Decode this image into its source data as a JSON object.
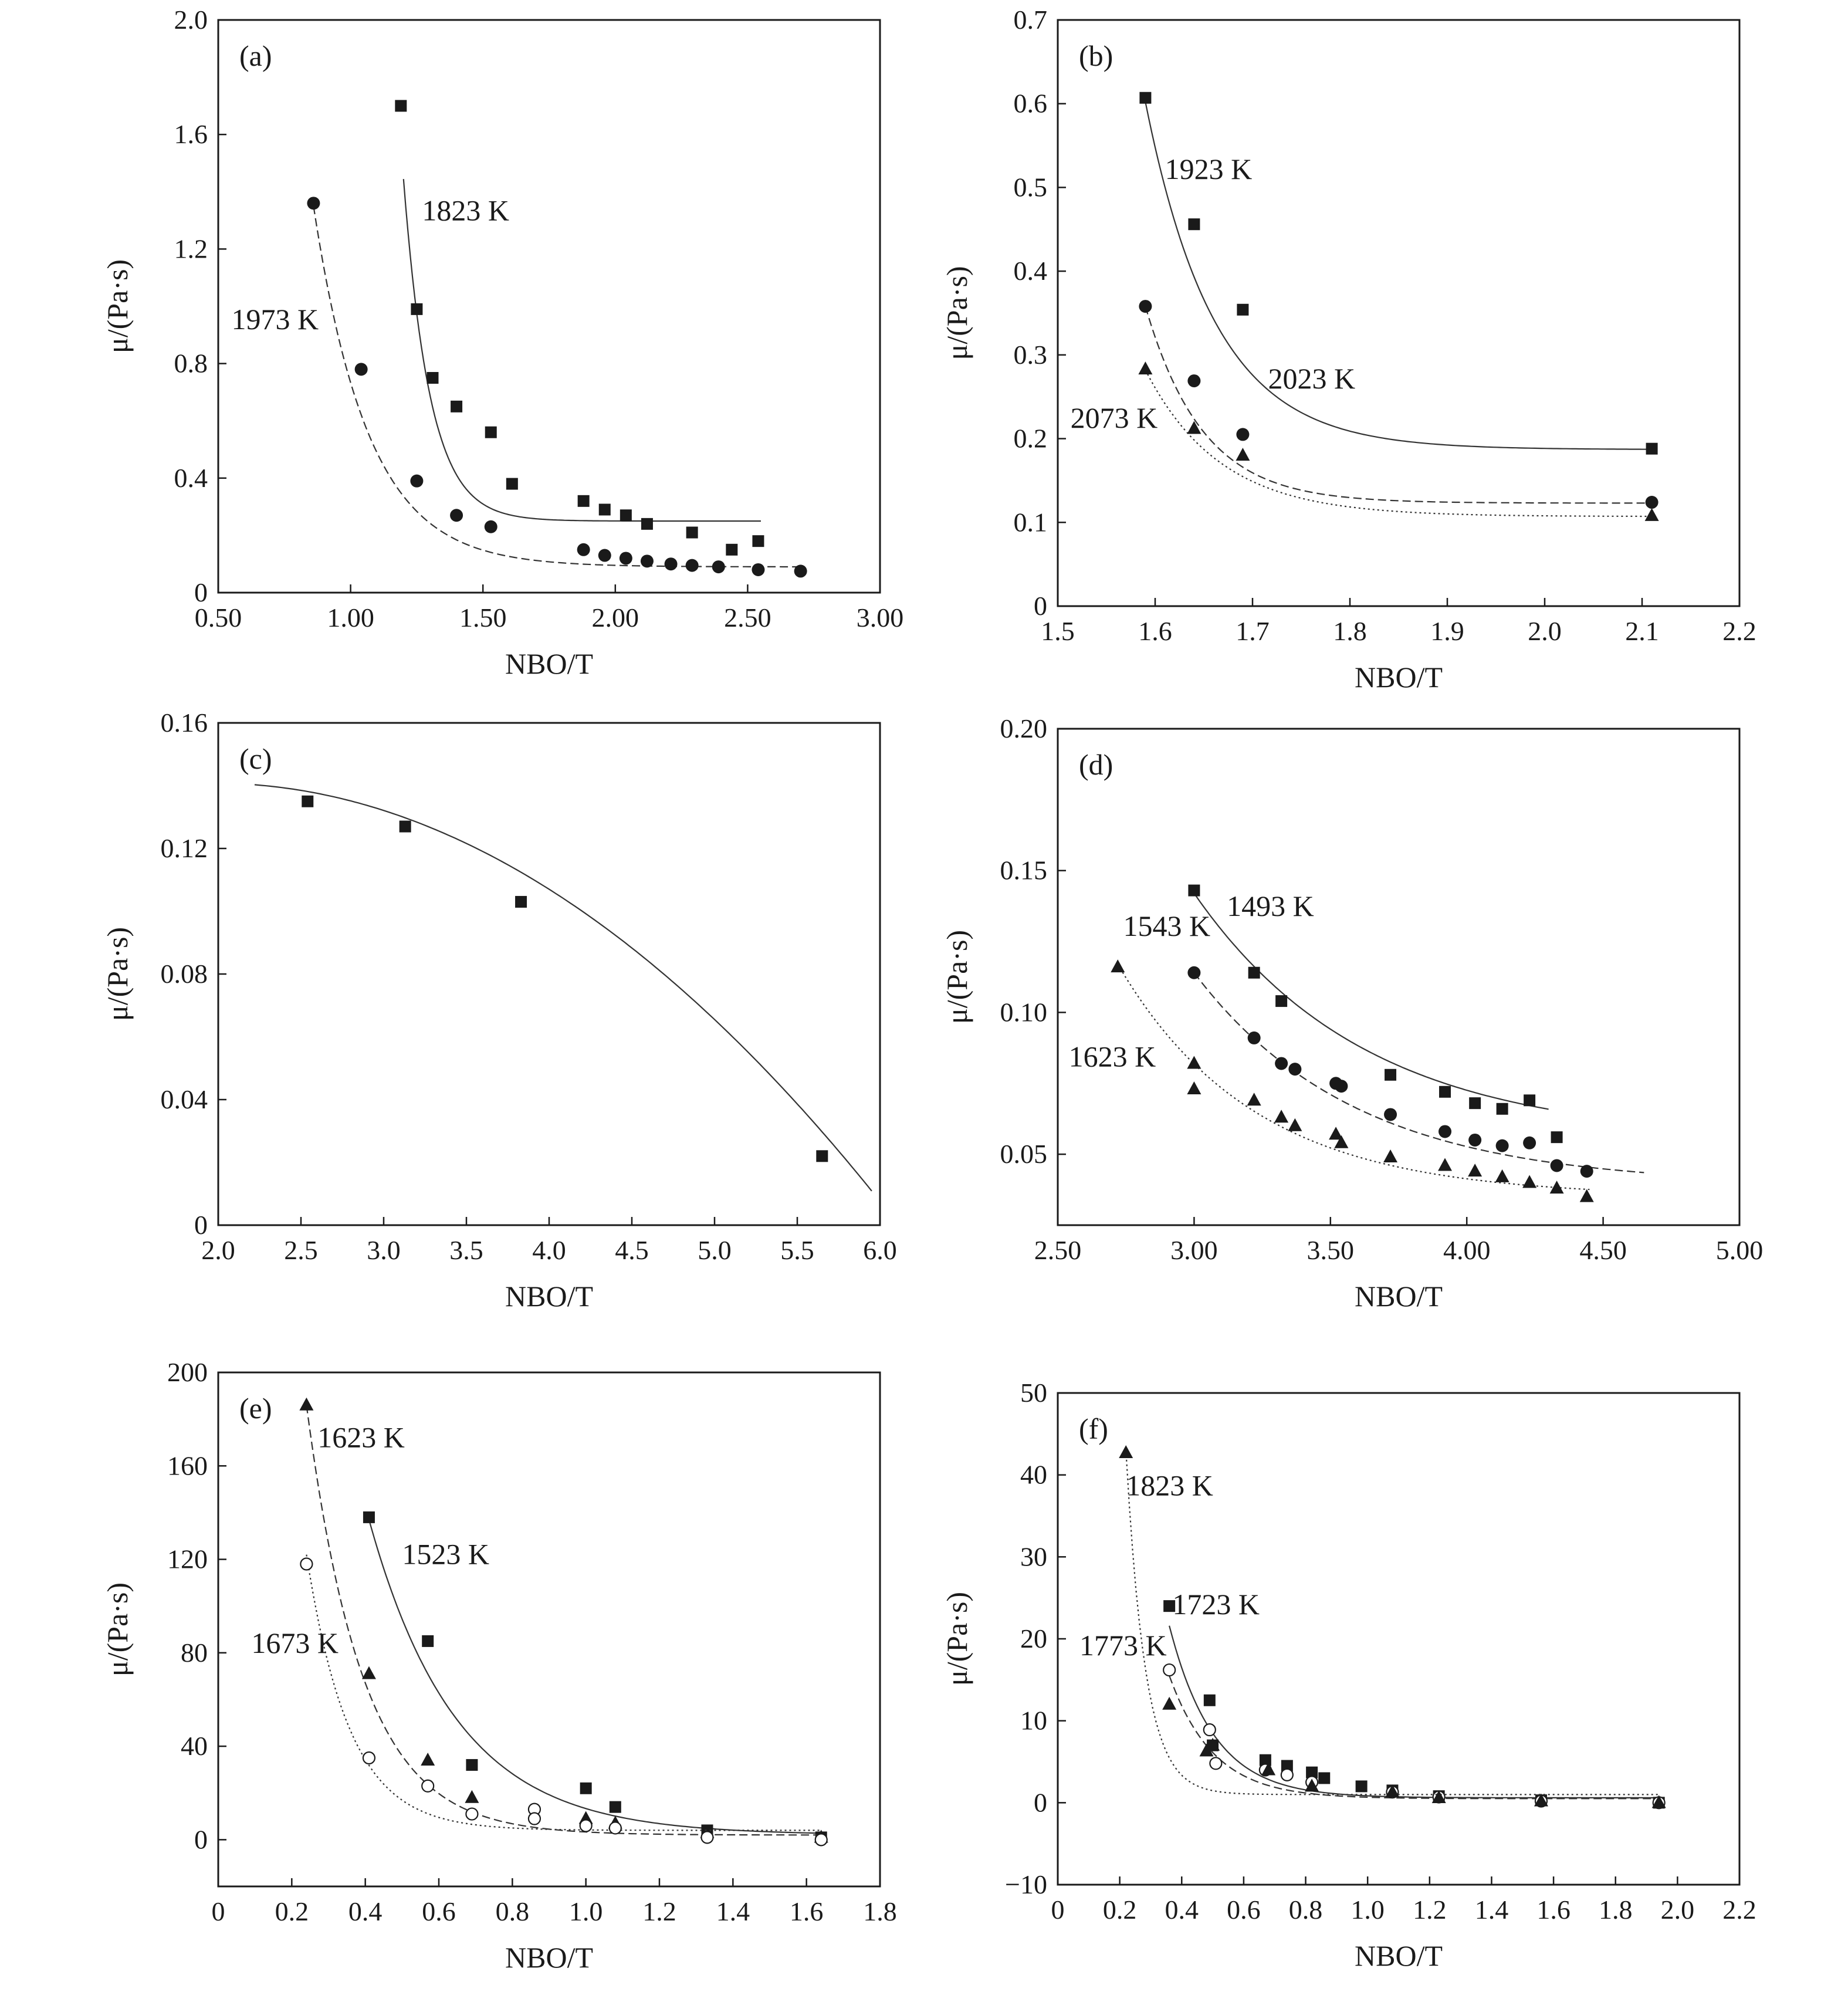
{
  "chart_data": [
    {
      "panel_label": "(a)",
      "type": "scatter",
      "xlabel": "NBO/T",
      "ylabel": "μ/(Pa·s)",
      "xlim": [
        0.5,
        3.0
      ],
      "ylim": [
        0,
        2.0
      ],
      "xticks": [
        "0.50",
        "1.00",
        "1.50",
        "2.00",
        "2.50",
        "3.00"
      ],
      "yticks": [
        "0",
        "0.4",
        "0.8",
        "1.2",
        "1.6",
        "2.0"
      ],
      "series": [
        {
          "name": "1823 K",
          "marker": "square",
          "line": "solid",
          "x": [
            1.19,
            1.25,
            1.31,
            1.4,
            1.53,
            1.61,
            1.88,
            1.96,
            2.04,
            2.12,
            2.29,
            2.44,
            2.54
          ],
          "y": [
            1.7,
            0.99,
            0.75,
            0.65,
            0.56,
            0.38,
            0.32,
            0.29,
            0.27,
            0.24,
            0.21,
            0.15,
            0.18
          ],
          "fit": {
            "a": 1.32,
            "b": 10,
            "c": 0.25,
            "x0": 1.19,
            "range": [
              1.2,
              2.55
            ]
          }
        },
        {
          "name": "1973 K",
          "marker": "circle",
          "line": "dashed",
          "x": [
            0.86,
            1.04,
            1.25,
            1.4,
            1.53,
            1.88,
            1.96,
            2.04,
            2.12,
            2.21,
            2.29,
            2.39,
            2.54,
            2.7
          ],
          "y": [
            1.36,
            0.78,
            0.39,
            0.27,
            0.23,
            0.15,
            0.13,
            0.12,
            0.11,
            0.1,
            0.095,
            0.09,
            0.08,
            0.075
          ],
          "fit": {
            "a": 1.26,
            "b": 4.8,
            "c": 0.09,
            "x0": 0.86,
            "range": [
              0.86,
              2.7
            ]
          }
        }
      ],
      "annotations": [
        "1823 K",
        "1973 K"
      ]
    },
    {
      "panel_label": "(b)",
      "type": "scatter",
      "xlabel": "NBO/T",
      "ylabel": "μ/(Pa·s)",
      "xlim": [
        1.5,
        2.2
      ],
      "ylim": [
        0,
        0.7
      ],
      "xticks": [
        "1.5",
        "1.6",
        "1.7",
        "1.8",
        "1.9",
        "2.0",
        "2.1",
        "2.2"
      ],
      "yticks": [
        "0",
        "0.1",
        "0.2",
        "0.3",
        "0.4",
        "0.5",
        "0.6",
        "0.7"
      ],
      "series": [
        {
          "name": "1923 K",
          "marker": "square",
          "line": "solid",
          "x": [
            1.59,
            1.64,
            1.69,
            2.11
          ],
          "y": [
            0.607,
            0.456,
            0.354,
            0.188
          ],
          "fit": {
            "a": 0.415,
            "b": 14,
            "c": 0.187,
            "x0": 1.59,
            "range": [
              1.59,
              2.11
            ]
          }
        },
        {
          "name": "2023 K",
          "marker": "circle",
          "line": "dashed",
          "x": [
            1.59,
            1.64,
            1.69,
            2.11
          ],
          "y": [
            0.358,
            0.269,
            0.205,
            0.124
          ],
          "fit": {
            "a": 0.235,
            "b": 17,
            "c": 0.123,
            "x0": 1.59,
            "range": [
              1.59,
              2.11
            ]
          }
        },
        {
          "name": "2073 K",
          "marker": "triangle",
          "line": "dotted",
          "x": [
            1.59,
            1.64,
            1.69,
            2.11
          ],
          "y": [
            0.283,
            0.212,
            0.18,
            0.108
          ],
          "fit": {
            "a": 0.175,
            "b": 13,
            "c": 0.107,
            "x0": 1.59,
            "range": [
              1.59,
              2.11
            ]
          }
        }
      ],
      "annotations": [
        "1923 K",
        "2023 K",
        "2073 K"
      ]
    },
    {
      "panel_label": "(c)",
      "type": "scatter",
      "xlabel": "NBO/T",
      "ylabel": "μ/(Pa·s)",
      "xlim": [
        2.0,
        6.0
      ],
      "ylim": [
        0,
        0.16
      ],
      "xticks": [
        "2.0",
        "2.5",
        "3.0",
        "3.5",
        "4.0",
        "4.5",
        "5.0",
        "5.5",
        "6.0"
      ],
      "yticks": [
        "0",
        "0.04",
        "0.08",
        "0.12",
        "0.16"
      ],
      "series": [
        {
          "name": "",
          "marker": "square",
          "line": "solid",
          "x": [
            2.54,
            3.13,
            3.83,
            5.65
          ],
          "y": [
            0.135,
            0.127,
            0.103,
            0.022
          ],
          "quad": {
            "a": -0.0082,
            "b": 0.0323,
            "c": 0.109,
            "range": [
              2.22,
              5.95
            ]
          }
        }
      ],
      "annotations": []
    },
    {
      "panel_label": "(d)",
      "type": "scatter",
      "xlabel": "NBO/T",
      "ylabel": "μ/(Pa·s)",
      "xlim": [
        2.5,
        5.0
      ],
      "ylim": [
        0.025,
        0.2
      ],
      "xticks": [
        "2.50",
        "3.00",
        "3.50",
        "4.00",
        "4.50",
        "5.00"
      ],
      "yticks": [
        "0.05",
        "0.10",
        "0.15",
        "0.20"
      ],
      "series": [
        {
          "name": "1493 K",
          "marker": "square",
          "line": "solid",
          "x": [
            3.0,
            3.22,
            3.32,
            3.72,
            3.92,
            4.03,
            4.13,
            4.23,
            4.33
          ],
          "y": [
            0.143,
            0.114,
            0.104,
            0.078,
            0.072,
            0.068,
            0.066,
            0.069,
            0.056
          ],
          "fit": {
            "a": 0.087,
            "b": 1.6,
            "c": 0.055,
            "x0": 3.0,
            "range": [
              3.0,
              4.3
            ]
          }
        },
        {
          "name": "1543 K",
          "marker": "circle",
          "line": "dashed",
          "x": [
            3.0,
            3.22,
            3.32,
            3.37,
            3.52,
            3.54,
            3.72,
            3.92,
            4.03,
            4.13,
            4.23,
            4.33,
            4.44
          ],
          "y": [
            0.114,
            0.091,
            0.082,
            0.08,
            0.075,
            0.074,
            0.064,
            0.058,
            0.055,
            0.053,
            0.054,
            0.046,
            0.044
          ],
          "fit": {
            "a": 0.075,
            "b": 1.7,
            "c": 0.039,
            "x0": 3.0,
            "range": [
              3.0,
              4.65
            ]
          }
        },
        {
          "name": "1623 K",
          "marker": "triangle",
          "line": "dotted",
          "x": [
            2.72,
            3.0,
            3.0,
            3.22,
            3.32,
            3.37,
            3.52,
            3.54,
            3.72,
            3.92,
            4.03,
            4.13,
            4.23,
            4.33,
            4.44
          ],
          "y": [
            0.116,
            0.082,
            0.073,
            0.069,
            0.063,
            0.06,
            0.057,
            0.054,
            0.049,
            0.046,
            0.044,
            0.042,
            0.04,
            0.038,
            0.035
          ],
          "fit": {
            "a": 0.082,
            "b": 2.0,
            "c": 0.035,
            "x0": 2.72,
            "range": [
              2.72,
              4.45
            ]
          }
        }
      ],
      "annotations": [
        "1493 K",
        "1543 K",
        "1623 K"
      ]
    },
    {
      "panel_label": "(e)",
      "type": "scatter",
      "xlabel": "NBO/T",
      "ylabel": "μ/(Pa·s)",
      "xlim": [
        0,
        1.8
      ],
      "ylim": [
        -20,
        200
      ],
      "xticks": [
        "0",
        "0.2",
        "0.4",
        "0.6",
        "0.8",
        "1.0",
        "1.2",
        "1.4",
        "1.6",
        "1.8"
      ],
      "yticks": [
        "0",
        "40",
        "80",
        "120",
        "160",
        "200"
      ],
      "series": [
        {
          "name": "1523 K",
          "marker": "square",
          "line": "solid",
          "x": [
            0.41,
            0.57,
            0.69,
            1.0,
            1.08,
            1.33,
            1.64
          ],
          "y": [
            138,
            85,
            32,
            22,
            14,
            4,
            1
          ],
          "fit": {
            "a": 135,
            "b": 4.2,
            "c": 2,
            "x0": 0.41,
            "range": [
              0.41,
              1.64
            ]
          }
        },
        {
          "name": "1623 K",
          "marker": "triangle",
          "line": "dashed",
          "x": [
            0.24,
            0.41,
            0.57,
            0.69,
            1.0,
            1.08,
            1.33,
            1.64
          ],
          "y": [
            186,
            71,
            34,
            18,
            9,
            7,
            3,
            1
          ],
          "fit": {
            "a": 184,
            "b": 6.5,
            "c": 2,
            "x0": 0.24,
            "range": [
              0.24,
              1.64
            ]
          }
        },
        {
          "name": "1673 K",
          "marker": "open-circle",
          "line": "dotted",
          "x": [
            0.24,
            0.41,
            0.57,
            0.69,
            0.86,
            0.86,
            1.0,
            1.08,
            1.33,
            1.64
          ],
          "y": [
            118,
            35,
            23,
            11,
            13,
            9,
            6,
            5,
            1,
            0
          ],
          "fit": {
            "a": 118,
            "b": 8.5,
            "c": 4,
            "x0": 0.24,
            "range": [
              0.24,
              1.64
            ]
          }
        }
      ],
      "annotations": [
        "1623 K",
        "1523 K",
        "1673 K"
      ]
    },
    {
      "panel_label": "(f)",
      "type": "scatter",
      "xlabel": "NBO/T",
      "ylabel": "μ/(Pa·s)",
      "xlim": [
        0,
        2.2
      ],
      "ylim": [
        -10,
        50
      ],
      "xticks": [
        "0",
        "0.2",
        "0.4",
        "0.6",
        "0.8",
        "1.0",
        "1.2",
        "1.4",
        "1.6",
        "1.8",
        "2.0",
        "2.2"
      ],
      "yticks": [
        "−10",
        "0",
        "10",
        "20",
        "30",
        "40",
        "50"
      ],
      "series": [
        {
          "name": "1723 K",
          "marker": "square",
          "line": "solid",
          "x": [
            0.36,
            0.49,
            0.5,
            0.67,
            0.74,
            0.82,
            0.86,
            0.98,
            1.08,
            1.23,
            1.56,
            1.94
          ],
          "y": [
            24,
            12.5,
            7,
            5.2,
            4.5,
            3.7,
            3,
            2,
            1.5,
            0.8,
            0.3,
            0
          ],
          "fit": {
            "a": 21,
            "b": 7,
            "c": 0.6,
            "x0": 0.36,
            "range": [
              0.36,
              1.94
            ]
          }
        },
        {
          "name": "1773 K",
          "marker": "open-circle",
          "line": "dashed",
          "x": [
            0.36,
            0.49,
            0.51,
            0.67,
            0.74,
            0.82,
            1.08,
            1.23,
            1.56,
            1.94
          ],
          "y": [
            16.2,
            8.9,
            4.8,
            4,
            3.4,
            2.5,
            1.3,
            0.7,
            0.2,
            0
          ],
          "fit": {
            "a": 15,
            "b": 7,
            "c": 0.5,
            "x0": 0.36,
            "range": [
              0.36,
              1.94
            ]
          }
        },
        {
          "name": "1823 K",
          "marker": "triangle",
          "line": "dotted",
          "x": [
            0.22,
            0.36,
            0.48,
            0.5,
            0.68,
            0.82,
            1.08,
            1.23,
            1.56,
            1.94
          ],
          "y": [
            42.7,
            12,
            6.3,
            7,
            4,
            2,
            1.3,
            0.6,
            0.2,
            0
          ],
          "fit": {
            "a": 42,
            "b": 16,
            "c": 1.0,
            "x0": 0.22,
            "range": [
              0.22,
              1.94
            ]
          }
        }
      ],
      "annotations": [
        "1823 K",
        "1723 K",
        "1773 K"
      ]
    }
  ]
}
